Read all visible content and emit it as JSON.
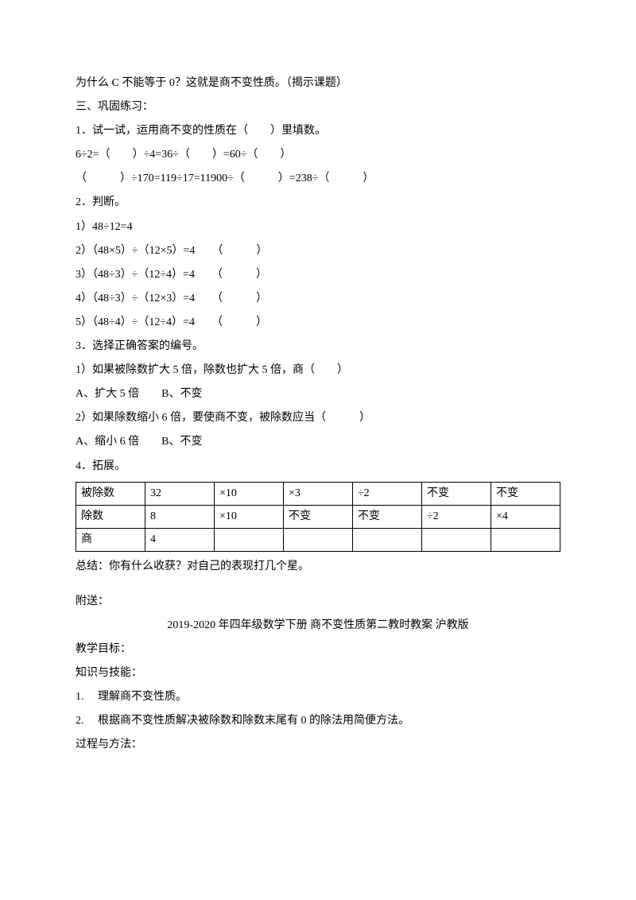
{
  "p1": "为什么 C 不能等于 0？这就是商不变性质。（揭示课题）",
  "p2": "三、巩固练习：",
  "p3": "1．试一试，运用商不变的性质在（　　）里填数。",
  "p4": "6÷2=（　　）÷4=36÷（　　）=60÷（　　）",
  "p5": "（　　　）÷170=119÷17=11900÷（　　　）=238÷（　　　）",
  "p6": "2．判断。",
  "p7": "1）48÷12=4",
  "p8": "2）（48×5）÷（12×5）=4　　（　　　）",
  "p9": "3）（48÷3）÷（12÷4）=4　　（　　　）",
  "p10": "4）（48÷3）÷（12×3）=4　　（　　　）",
  "p11": "5）（48÷4）÷（12÷4）=4　　（　　　）",
  "p12": "3．选择正确答案的编号。",
  "p13": "1）如果被除数扩大 5 倍，除数也扩大 5 倍，商（　　）",
  "p14": "A、扩大 5 倍　　B、不变",
  "p15": "2）如果除数缩小 6 倍，要使商不变，被除数应当（　　　）",
  "p16": "A、缩小 6 倍　　B、不变",
  "p17": "4．拓展。",
  "table": {
    "rows": [
      [
        "被除数",
        "32",
        "×10",
        "×3",
        "÷2",
        "不变",
        "不变"
      ],
      [
        "除数",
        "8",
        "×10",
        "不变",
        "不变",
        "÷2",
        "×4"
      ],
      [
        "商",
        "4",
        "",
        "",
        "",
        "",
        ""
      ]
    ],
    "col_widths": [
      "14%",
      "14%",
      "14%",
      "14%",
      "14%",
      "14%",
      "14%"
    ]
  },
  "p18": "总结：你有什么收获？对自己的表现打几个星。",
  "p19": "附送：",
  "p20": "2019-2020 年四年级数学下册 商不变性质第二教时教案 沪教版",
  "p21": "教学目标：",
  "p22": "知识与技能：",
  "p23": "1.　 理解商不变性质。",
  "p24": "2.　 根据商不变性质解决被除数和除数末尾有 0 的除法用简便方法。",
  "p25": "过程与方法："
}
